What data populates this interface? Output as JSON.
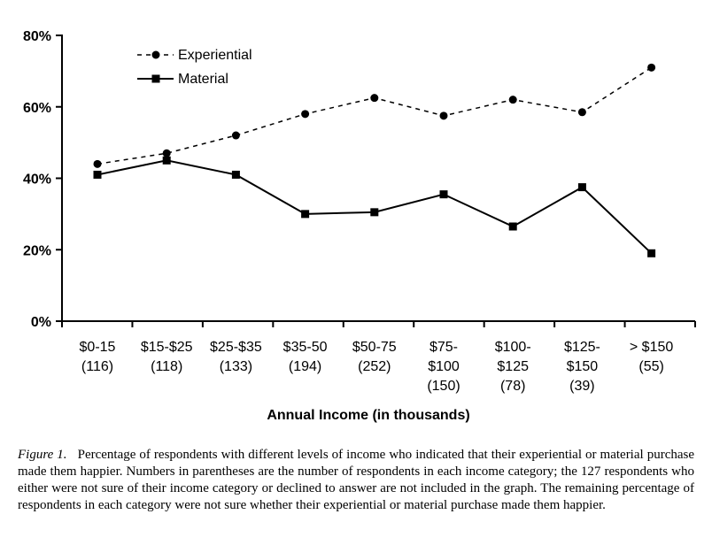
{
  "chart_data": {
    "type": "line",
    "title": "",
    "xlabel": "Annual Income (in thousands)",
    "ylabel": "",
    "ylim": [
      0,
      80
    ],
    "yticks": [
      "0%",
      "20%",
      "40%",
      "60%",
      "80%"
    ],
    "grid": false,
    "legend_position": "top-left",
    "categories": [
      [
        "$0-15",
        "(116)"
      ],
      [
        "$15-$25",
        "(118)"
      ],
      [
        "$25-$35",
        "(133)"
      ],
      [
        "$35-50",
        "(194)"
      ],
      [
        "$50-75",
        "(252)"
      ],
      [
        "$75-",
        "$100",
        "(150)"
      ],
      [
        "$100-",
        "$125",
        "(78)"
      ],
      [
        "$125-",
        "$150",
        "(39)"
      ],
      [
        "> $150",
        "(55)"
      ]
    ],
    "series": [
      {
        "name": "Experiential",
        "style": "dashed",
        "marker": "circle",
        "values": [
          44,
          47,
          52,
          58,
          62.5,
          57.5,
          62,
          58.5,
          71
        ]
      },
      {
        "name": "Material",
        "style": "solid",
        "marker": "square",
        "values": [
          41,
          45,
          41,
          30,
          30.5,
          35.5,
          26.5,
          37.5,
          19
        ]
      }
    ]
  },
  "caption": {
    "figure_label": "Figure 1.",
    "text": "Percentage of respondents with different levels of income who indicated that their experiential or material purchase made them happier. Numbers in parentheses are the number of respondents in each income category; the 127 respondents who either were not sure of their income category or declined to answer are not included in the graph. The remaining percentage of respondents in each category were not sure whether their experiential or material purchase made them happier."
  }
}
